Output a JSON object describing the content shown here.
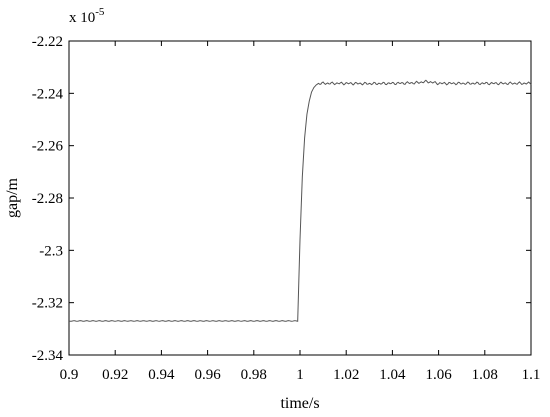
{
  "chart_data": {
    "type": "line",
    "title": "",
    "xlabel": "time/s",
    "ylabel": "gap/m",
    "exponent_label": "x 10",
    "exponent_power": "-5",
    "xlim": [
      0.9,
      1.1
    ],
    "ylim": [
      -2.34,
      -2.22
    ],
    "x_ticks": [
      0.9,
      0.92,
      0.94,
      0.96,
      0.98,
      1,
      1.02,
      1.04,
      1.06,
      1.08,
      1.1
    ],
    "x_tick_labels": [
      "0.9",
      "0.92",
      "0.94",
      "0.96",
      "0.98",
      "1",
      "1.02",
      "1.04",
      "1.06",
      "1.08",
      "1.1"
    ],
    "y_ticks": [
      -2.22,
      -2.24,
      -2.26,
      -2.28,
      -2.3,
      -2.32,
      -2.34
    ],
    "y_tick_labels": [
      "-2.22",
      "-2.24",
      "-2.26",
      "-2.28",
      "-2.3",
      "-2.32",
      "-2.34"
    ],
    "grid": false,
    "line_color": "#555555",
    "series": [
      {
        "x": [
          0.9,
          0.92,
          0.94,
          0.96,
          0.98,
          0.999,
          1.0,
          1.001,
          1.002,
          1.003,
          1.004,
          1.005,
          1.006,
          1.007,
          1.008,
          1.01,
          1.015,
          1.02,
          1.03,
          1.04,
          1.05,
          1.055,
          1.06,
          1.07,
          1.08,
          1.09,
          1.1
        ],
        "values": [
          -2.327,
          -2.327,
          -2.327,
          -2.327,
          -2.327,
          -2.327,
          -2.296,
          -2.272,
          -2.257,
          -2.248,
          -2.243,
          -2.2395,
          -2.2378,
          -2.2368,
          -2.2362,
          -2.2362,
          -2.2362,
          -2.2362,
          -2.2363,
          -2.2362,
          -2.236,
          -2.2355,
          -2.2362,
          -2.2362,
          -2.2362,
          -2.2362,
          -2.2362
        ]
      }
    ]
  }
}
